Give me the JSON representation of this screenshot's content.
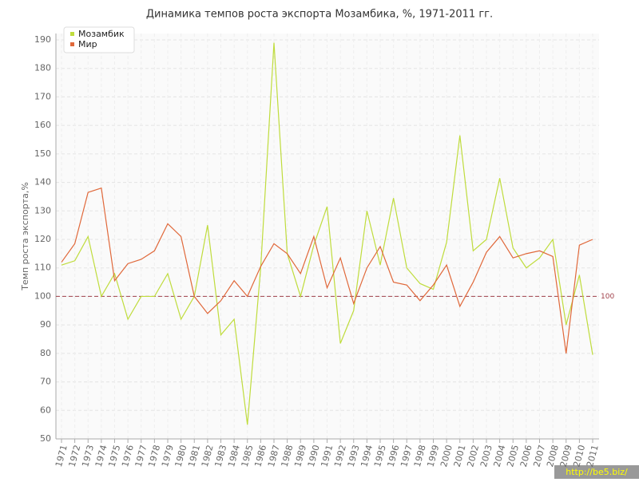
{
  "chart_data": {
    "type": "line",
    "title": "Динамика темпов роста экспорта Мозамбика, %, 1971-2011 гг.",
    "y_label": "Темп роста экспорта,%",
    "categories": [
      "1971",
      "1972",
      "1973",
      "1974",
      "1975",
      "1976",
      "1977",
      "1978",
      "1979",
      "1980",
      "1981",
      "1982",
      "1983",
      "1984",
      "1985",
      "1986",
      "1987",
      "1988",
      "1989",
      "1990",
      "1991",
      "1992",
      "1993",
      "1994",
      "1995",
      "1996",
      "1997",
      "1998",
      "1999",
      "2000",
      "2001",
      "2002",
      "2003",
      "2004",
      "2005",
      "2006",
      "2007",
      "2008",
      "2009",
      "2010",
      "2011"
    ],
    "series": [
      {
        "name": "Мозамбик",
        "color": "#bfdc3c",
        "values": [
          111,
          112.5,
          121,
          100,
          108,
          92,
          100,
          100,
          108,
          92,
          100,
          125,
          86.5,
          92,
          55,
          110,
          189,
          115,
          100,
          118,
          131.5,
          83.5,
          95,
          130,
          111,
          134.5,
          110,
          104.5,
          102.5,
          119,
          156.5,
          116,
          120,
          141.5,
          117,
          110,
          113.5,
          120,
          90,
          107.5,
          79.5
        ]
      },
      {
        "name": "Мир",
        "color": "#e0683a",
        "values": [
          112,
          118.5,
          136.5,
          138,
          105.5,
          111.5,
          113,
          116,
          125.5,
          121,
          100,
          94,
          98.5,
          105.5,
          100,
          110.5,
          118.5,
          115,
          108,
          121,
          103,
          113.5,
          97.5,
          110,
          117.5,
          105,
          104,
          98.5,
          104,
          111,
          96.5,
          105,
          115.5,
          121,
          113.5,
          115,
          116,
          114,
          80,
          118,
          120
        ]
      }
    ],
    "reference_line": 100,
    "ylim": [
      50,
      190
    ],
    "yticks": [
      50,
      60,
      70,
      80,
      90,
      100,
      110,
      120,
      130,
      140,
      150,
      160,
      170,
      180,
      190
    ],
    "grid": true,
    "legend": "top-left",
    "watermark": "http://be5.biz/"
  }
}
